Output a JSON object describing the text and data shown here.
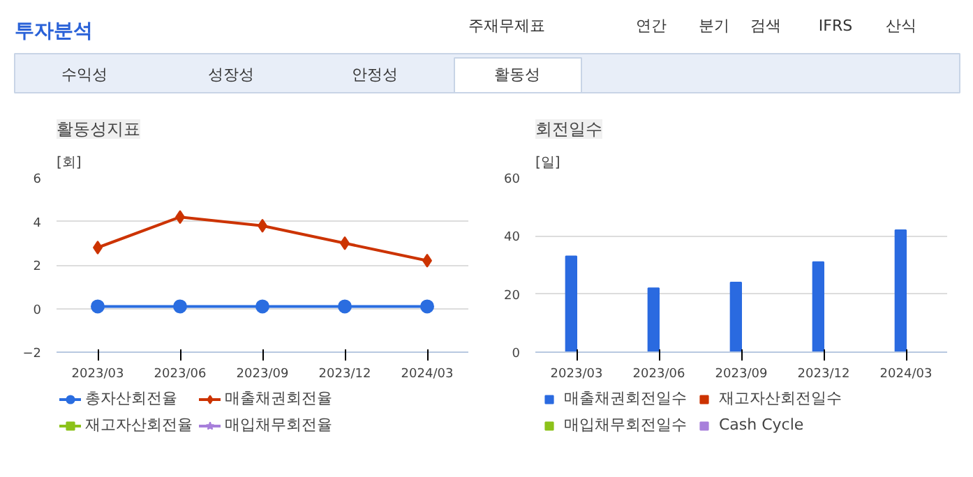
{
  "chart_data": [
    {
      "type": "other",
      "title": "투자분석",
      "annotations": [
        "주재무제표",
        "연간",
        "분기",
        "검색",
        "IFRS",
        "산식",
        "수익성",
        "성장성",
        "안정성",
        "활동성"
      ]
    },
    {
      "type": "line",
      "title": "활동성지표",
      "ylabel": "[회]",
      "categories": [
        "2023/03",
        "2023/06",
        "2023/09",
        "2023/12",
        "2024/03"
      ],
      "ylim": [
        -2,
        6
      ],
      "yticks": [
        -2,
        0,
        2,
        4,
        6
      ],
      "grid": "y",
      "legend": "bottom",
      "series": [
        {
          "name": "총자산회전율",
          "color": "#2a6de0",
          "marker": "circle",
          "values": [
            0.1,
            0.1,
            0.1,
            0.1,
            0.1
          ]
        },
        {
          "name": "매출채권회전율",
          "color": "#cc3300",
          "marker": "diamond",
          "values": [
            2.8,
            4.2,
            3.8,
            3.0,
            2.2
          ]
        },
        {
          "name": "재고자산회전율",
          "color": "#8cc21a",
          "marker": "square",
          "values": [
            null,
            null,
            null,
            null,
            null
          ]
        },
        {
          "name": "매입채무회전율",
          "color": "#a77fdb",
          "marker": "star",
          "values": [
            null,
            null,
            null,
            null,
            null
          ]
        }
      ]
    },
    {
      "type": "bar",
      "title": "회전일수",
      "ylabel": "[일]",
      "categories": [
        "2023/03",
        "2023/06",
        "2023/09",
        "2023/12",
        "2024/03"
      ],
      "ylim": [
        0,
        60
      ],
      "yticks": [
        0,
        20,
        40,
        60
      ],
      "grid": "y",
      "legend": "bottom",
      "series": [
        {
          "name": "매출채권회전일수",
          "color": "#2a6ae0",
          "values": [
            33,
            22,
            24,
            31,
            42
          ]
        },
        {
          "name": "재고자산회전일수",
          "color": "#cc3300",
          "values": [
            null,
            null,
            null,
            null,
            null
          ]
        },
        {
          "name": "매입채무회전일수",
          "color": "#8cc21a",
          "values": [
            null,
            null,
            null,
            null,
            null
          ]
        },
        {
          "name": "Cash Cycle",
          "color": "#a77fdb",
          "values": [
            null,
            null,
            null,
            null,
            null
          ]
        }
      ]
    }
  ]
}
